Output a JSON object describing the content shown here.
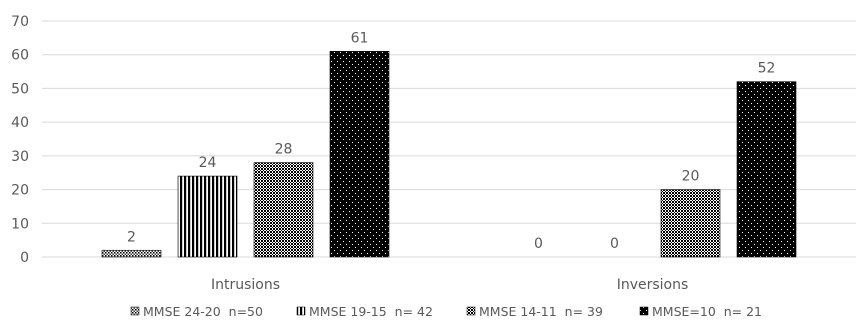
{
  "chart_data": {
    "type": "bar",
    "title": "",
    "xlabel": "",
    "ylabel": "",
    "categories": [
      "Intrusions",
      "Inversions"
    ],
    "series": [
      {
        "name": "MMSE 24-20  n=50",
        "values": [
          2,
          0
        ],
        "pattern": "dots-fine",
        "color": "#000000"
      },
      {
        "name": "MMSE 19-15  n= 42",
        "values": [
          24,
          0
        ],
        "pattern": "vertical-stripes",
        "color": "#000000"
      },
      {
        "name": "MMSE 14-11  n= 39",
        "values": [
          28,
          20
        ],
        "pattern": "checker",
        "color": "#000000"
      },
      {
        "name": "MMSE=10  n= 21",
        "values": [
          61,
          52
        ],
        "pattern": "dots-on-black",
        "color": "#000000"
      }
    ],
    "ylim": [
      0,
      70
    ],
    "yticks": [
      0,
      10,
      20,
      30,
      40,
      50,
      60,
      70
    ],
    "grid": true,
    "legend_position": "bottom",
    "colors": {
      "grid": "#d9d9d9",
      "text": "#595959",
      "axis": "#d9d9d9"
    }
  }
}
